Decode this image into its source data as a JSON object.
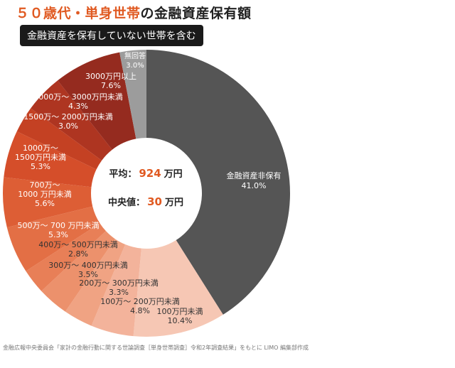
{
  "title": {
    "accent": "５０歳代・単身世帯",
    "rest": "の金融資産保有額"
  },
  "subtitle": "金融資産を保有していない世帯を含む",
  "center": {
    "avg_label": "平均：",
    "avg_value": "924",
    "avg_unit": "万円",
    "median_label": "中央値：",
    "median_value": "30",
    "median_unit": "万円",
    "value_color": "#e05a22"
  },
  "source": "金融広報中央委員会「家計の金融行動に関する世論調査［単身世帯調査］令和2年調査結果」をもとに LIMO 編集部作成",
  "chart_data": {
    "type": "pie",
    "title": "５０歳代・単身世帯の金融資産保有額",
    "subtitle": "金融資産を保有していない世帯を含む",
    "categories": [
      "金融資産非保有",
      "100万円未満",
      "100万～ 200万円未満",
      "200万～ 300万円未満",
      "300万～ 400万円未満",
      "400万～ 500万円未満",
      "500万～ 700 万円未満",
      "700万～ 1000 万円未満",
      "1000万～ 1500万円未満",
      "1500万～ 2000万円未満",
      "2000万～ 3000万円未満",
      "3000万円以上",
      "無回答"
    ],
    "values": [
      41.0,
      10.4,
      4.8,
      3.3,
      3.5,
      2.8,
      5.3,
      5.6,
      5.3,
      3.0,
      4.3,
      7.6,
      3.0
    ],
    "value_labels": [
      "41.0%",
      "10.4%",
      "4.8%",
      "3.3%",
      "3.5%",
      "2.8%",
      "5.3%",
      "5.6%",
      "5.3%",
      "3.0%",
      "4.3%",
      "7.6%",
      "3.0%"
    ],
    "colors": [
      "#555555",
      "#f6c7b4",
      "#f3b39b",
      "#f0a383",
      "#ec916c",
      "#e87f57",
      "#e36f45",
      "#dd5e35",
      "#d54e2a",
      "#c44123",
      "#ae3521",
      "#952b1f",
      "#9c9c9c"
    ]
  }
}
